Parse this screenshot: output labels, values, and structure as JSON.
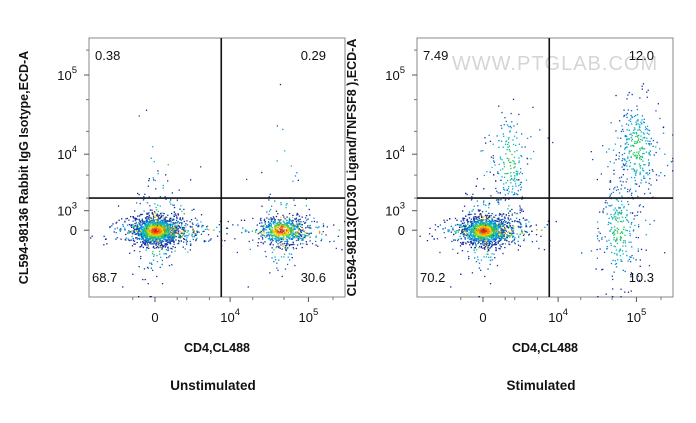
{
  "chart_data": [
    {
      "type": "scatter",
      "subtype": "flow-cytometry-density-dot-plot",
      "xlabel": "CD4,CL488",
      "ylabel": "CL594-98136 Rabbit IgG Isotype,ECD-A",
      "caption": "Unstimulated",
      "x_scale": "biexponential",
      "y_scale": "biexponential",
      "x_ticks": [
        {
          "value": 0,
          "label": "0",
          "base": "",
          "exp": ""
        },
        {
          "value": 10000,
          "label": "10^4",
          "base": "10",
          "exp": "4"
        },
        {
          "value": 100000,
          "label": "10^5",
          "base": "10",
          "exp": "5"
        }
      ],
      "y_ticks": [
        {
          "value": 0,
          "label": "0",
          "base": "",
          "exp": ""
        },
        {
          "value": 1000,
          "label": "10^3",
          "base": "10",
          "exp": "3"
        },
        {
          "value": 10000,
          "label": "10^4",
          "base": "10",
          "exp": "4"
        },
        {
          "value": 100000,
          "label": "10^5",
          "base": "10",
          "exp": "5"
        }
      ],
      "quadrant_gate": {
        "x": 7500,
        "y": 2000
      },
      "quadrants": {
        "upper_left": "0.38",
        "upper_right": "0.29",
        "lower_left": "68.7",
        "lower_right": "30.6"
      },
      "populations": [
        {
          "x": 0,
          "y": 0,
          "share": 0.687
        },
        {
          "x": 45000,
          "y": 0,
          "share": 0.306
        },
        {
          "x": 300,
          "y": 10000,
          "share": 0.004
        },
        {
          "x": 50000,
          "y": 8000,
          "share": 0.003
        }
      ]
    },
    {
      "type": "scatter",
      "subtype": "flow-cytometry-density-dot-plot",
      "xlabel": "CD4,CL488",
      "ylabel": "CL594-98113(CD30 Ligand/TNFSF8 ),ECD-A",
      "caption": "Stimulated",
      "x_scale": "biexponential",
      "y_scale": "biexponential",
      "x_ticks": [
        {
          "value": 0,
          "label": "0",
          "base": "",
          "exp": ""
        },
        {
          "value": 10000,
          "label": "10^4",
          "base": "10",
          "exp": "4"
        },
        {
          "value": 100000,
          "label": "10^5",
          "base": "10",
          "exp": "5"
        }
      ],
      "y_ticks": [
        {
          "value": 0,
          "label": "0",
          "base": "",
          "exp": ""
        },
        {
          "value": 1000,
          "label": "10^3",
          "base": "10",
          "exp": "3"
        },
        {
          "value": 10000,
          "label": "10^4",
          "base": "10",
          "exp": "4"
        },
        {
          "value": 100000,
          "label": "10^5",
          "base": "10",
          "exp": "5"
        }
      ],
      "quadrant_gate": {
        "x": 7500,
        "y": 2000
      },
      "quadrants": {
        "upper_left": "7.49",
        "upper_right": "12.0",
        "lower_left": "70.2",
        "lower_right": "10.3"
      },
      "populations": [
        {
          "x": 0,
          "y": 0,
          "share": 0.702
        },
        {
          "x": 60000,
          "y": 0,
          "share": 0.103
        },
        {
          "x": 1500,
          "y": 8000,
          "share": 0.075
        },
        {
          "x": 100000,
          "y": 12000,
          "share": 0.12
        }
      ]
    }
  ],
  "watermark": "WWW.PTGLAB.COM"
}
